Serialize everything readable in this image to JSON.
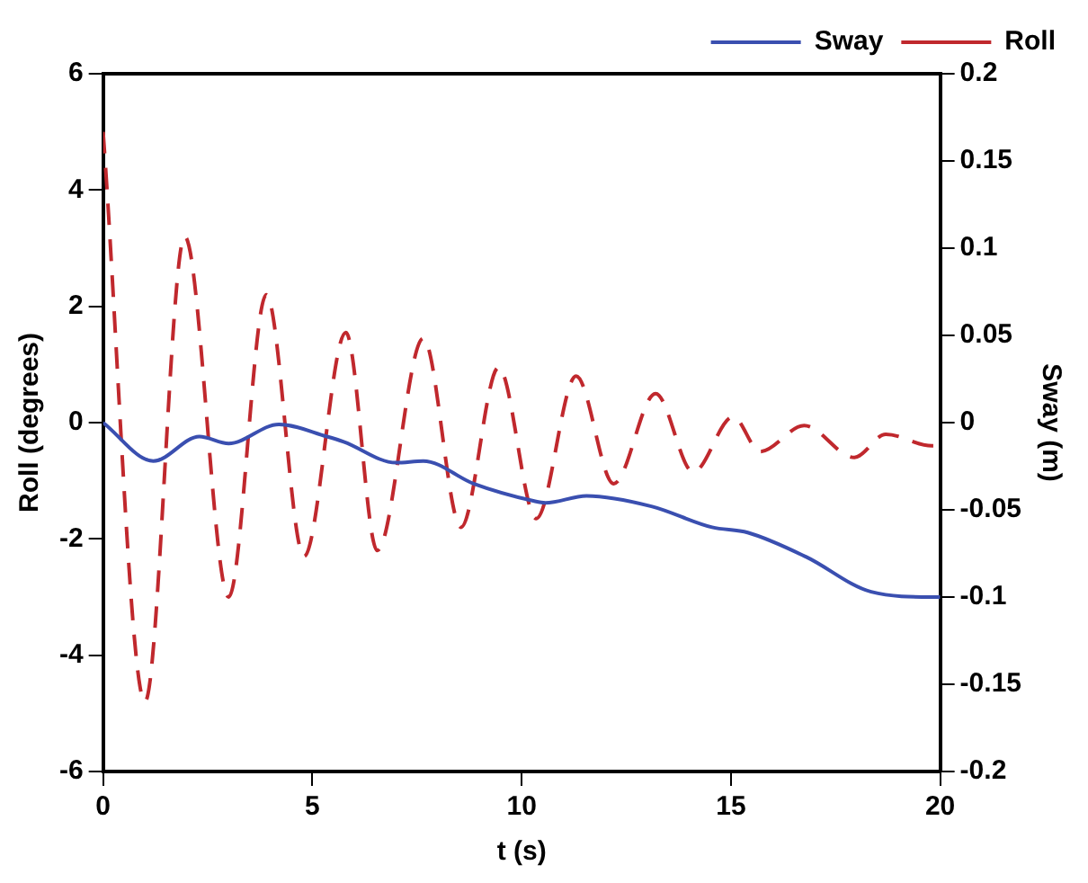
{
  "chart_data": {
    "type": "line",
    "xlabel": "t (s)",
    "ylabel": "Roll (degrees)",
    "y2label": "Sway (m)",
    "xlim": [
      0,
      20
    ],
    "xticks": [
      0,
      5,
      10,
      15,
      20
    ],
    "ylim": [
      -6,
      6
    ],
    "yticks": [
      -6,
      -4,
      -2,
      0,
      2,
      4,
      6
    ],
    "y2lim": [
      -0.2,
      0.2
    ],
    "y2ticks": [
      -0.2,
      -0.15,
      -0.1,
      -0.05,
      0,
      0.05,
      0.1,
      0.15,
      0.2
    ],
    "grid": false,
    "legend": "top right",
    "marker": "none",
    "series": [
      {
        "name": "Sway",
        "color": "#3a4fb0",
        "axis": "y2",
        "line_style": "solid",
        "x": [
          0,
          1.2,
          2.3,
          3.0,
          4.2,
          5.35,
          5.75,
          7.0,
          7.65,
          8.85,
          10.3,
          10.57,
          11.55,
          13.1,
          14.55,
          15.4,
          16.8,
          18.35,
          19.8,
          20
        ],
        "values": [
          0,
          -0.022,
          -0.008,
          -0.012,
          -0.001,
          -0.008,
          -0.011,
          -0.023,
          -0.022,
          -0.035,
          -0.045,
          -0.046,
          -0.042,
          -0.048,
          -0.06,
          -0.063,
          -0.077,
          -0.097,
          -0.1,
          -0.1
        ]
      },
      {
        "name": "Roll",
        "color": "#c0282d",
        "axis": "y",
        "line_style": "dashed",
        "x": [
          0,
          1.0,
          1.95,
          3.0,
          3.9,
          4.8,
          5.8,
          6.55,
          7.65,
          8.55,
          9.45,
          10.35,
          11.3,
          12.2,
          13.2,
          14.1,
          15.05,
          15.7,
          16.75,
          17.95,
          18.7,
          19.8,
          20
        ],
        "values": [
          5.0,
          -4.8,
          3.2,
          -3.0,
          2.2,
          -2.3,
          1.55,
          -2.2,
          1.45,
          -1.8,
          0.95,
          -1.65,
          0.8,
          -1.05,
          0.5,
          -0.85,
          0.1,
          -0.5,
          -0.05,
          -0.6,
          -0.2,
          -0.4,
          -0.4
        ]
      }
    ]
  }
}
